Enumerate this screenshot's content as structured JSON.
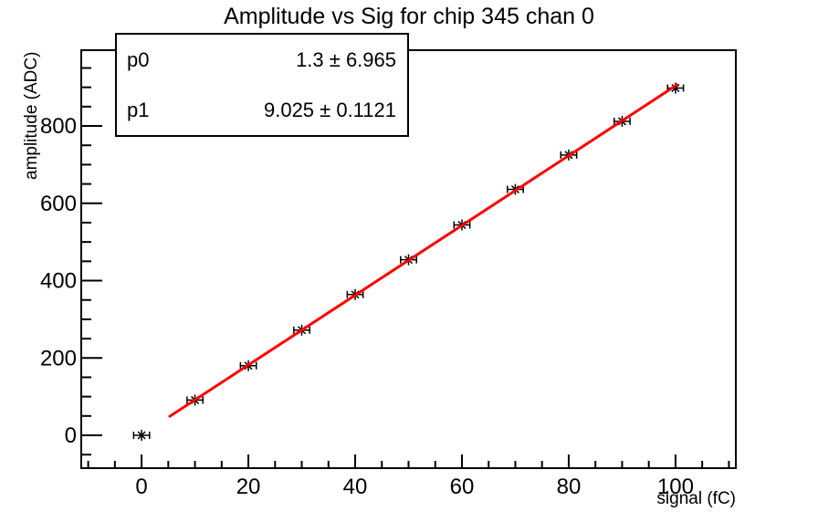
{
  "title": "Amplitude vs Sig for chip 345 chan 0",
  "stats_box": {
    "rows": [
      {
        "label": "p0",
        "value": "1.3 ± 6.965"
      },
      {
        "label": "p1",
        "value": "9.025 ± 0.1121"
      }
    ]
  },
  "chart_data": {
    "type": "scatter",
    "title": "Amplitude vs Sig for chip 345 chan 0",
    "xlabel": "signal (fC)",
    "ylabel": "amplitude (ADC)",
    "xlim": [
      -11.3,
      111.3
    ],
    "ylim": [
      -85,
      996
    ],
    "grid": false,
    "x_major_ticks": [
      0,
      20,
      40,
      60,
      80,
      100
    ],
    "x_minor_step": 5,
    "y_major_ticks": [
      0,
      200,
      400,
      600,
      800
    ],
    "y_minor_step": 50,
    "axis_color": "#000000",
    "series": [
      {
        "name": "measured-points",
        "type": "scatter",
        "marker": "asterisk",
        "color": "#000000",
        "x": [
          0,
          10,
          20,
          30,
          40,
          50,
          60,
          70,
          80,
          90,
          100
        ],
        "y": [
          0,
          91,
          180,
          272,
          364,
          454,
          544,
          636,
          725,
          812,
          898
        ],
        "xerr": 1.4
      },
      {
        "name": "linear-fit",
        "type": "line",
        "color": "#ff0000",
        "fit_p0": 1.3,
        "fit_p1": 9.025,
        "x_range": [
          5.3,
          100.3
        ],
        "line_width": 3
      }
    ]
  }
}
